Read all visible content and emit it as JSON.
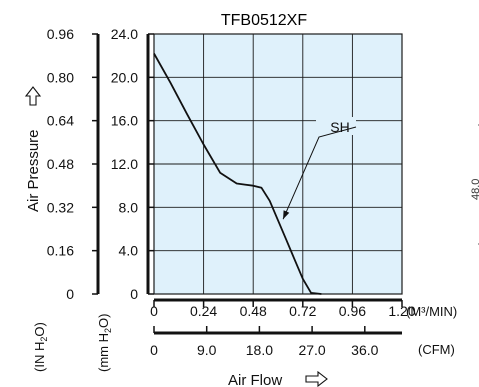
{
  "chart_data": {
    "type": "line",
    "title": "TFB0512XF",
    "series": [
      {
        "name": "SH",
        "color": "#111111",
        "x": [
          0.0,
          0.08,
          0.16,
          0.24,
          0.32,
          0.4,
          0.44,
          0.48,
          0.52,
          0.56,
          0.6,
          0.64,
          0.68,
          0.72,
          0.76,
          0.81
        ],
        "y": [
          22.2,
          19.5,
          16.6,
          13.8,
          11.2,
          10.2,
          10.1,
          10.0,
          9.8,
          8.6,
          6.8,
          5.0,
          3.2,
          1.4,
          0.1,
          0.0
        ]
      }
    ],
    "series_label": {
      "text": "SH",
      "points_to_x": 0.61
    },
    "axes": {
      "x_primary": {
        "ticks": [
          "0",
          "0.24",
          "0.48",
          "0.72",
          "0.96",
          "1.20"
        ],
        "unit": "(M³/MIN)",
        "xlim": [
          0,
          1.2
        ]
      },
      "x_secondary": {
        "ticks": [
          "0",
          "9.0",
          "18.0",
          "27.0",
          "36.0"
        ],
        "tick_values_m3min": [
          0,
          0.255,
          0.51,
          0.765,
          1.02
        ],
        "unit": "(CFM)"
      },
      "y_left_inh2o": {
        "ticks": [
          "0",
          "0.16",
          "0.32",
          "0.48",
          "0.64",
          "0.80",
          "0.96"
        ],
        "unit_parts": [
          "(IN H",
          "2",
          "O)"
        ]
      },
      "y_right_mmh2o": {
        "ticks": [
          "0",
          "4.0",
          "8.0",
          "12.0",
          "16.0",
          "20.0",
          "24.0"
        ],
        "unit_parts": [
          "(mm H",
          "2",
          "O)"
        ],
        "ylim": [
          0,
          24
        ]
      },
      "xlabel": "Air Flow",
      "ylabel": "Air Pressure"
    },
    "side_label": "48.0",
    "grid": true
  }
}
